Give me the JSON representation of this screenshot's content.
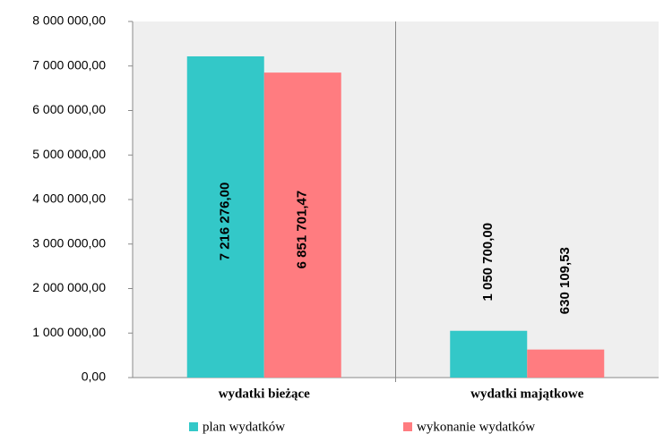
{
  "chart_data": {
    "type": "bar",
    "categories": [
      "wydatki bieżące",
      "wydatki majątkowe"
    ],
    "series": [
      {
        "name": "plan wydatków",
        "color": "#33c8c8",
        "values": [
          7216276.0,
          1050700.0
        ],
        "value_labels": [
          "7 216 276,00",
          "1 050 700,00"
        ]
      },
      {
        "name": "wykonanie wydatków",
        "color": "#ff7c80",
        "values": [
          6851701.47,
          630109.53
        ],
        "value_labels": [
          "6 851 701,47",
          "630 109,53"
        ]
      }
    ],
    "ylim": [
      0,
      8000000
    ],
    "yticks": [
      {
        "value": 0,
        "label": "0,00"
      },
      {
        "value": 1000000,
        "label": "1 000 000,00"
      },
      {
        "value": 2000000,
        "label": "2 000 000,00"
      },
      {
        "value": 3000000,
        "label": "3 000 000,00"
      },
      {
        "value": 4000000,
        "label": "4 000 000,00"
      },
      {
        "value": 5000000,
        "label": "5 000 000,00"
      },
      {
        "value": 6000000,
        "label": "6 000 000,00"
      },
      {
        "value": 7000000,
        "label": "7 000 000,00"
      },
      {
        "value": 8000000,
        "label": "8 000 000,00"
      }
    ],
    "grid": false,
    "legend": "bottom"
  }
}
